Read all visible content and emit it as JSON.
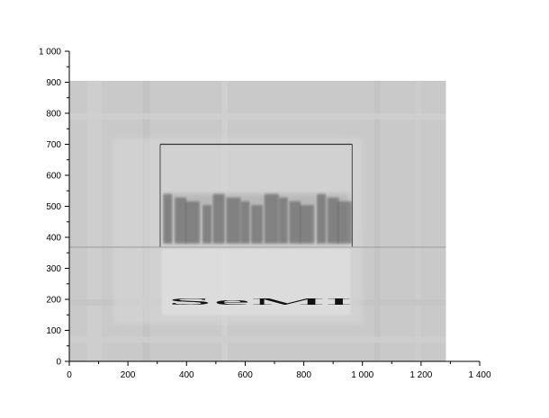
{
  "chart_data": {
    "type": "heatmap",
    "title": "",
    "xlabel": "",
    "ylabel": "",
    "xlim": [
      0,
      1400
    ],
    "ylim": [
      0,
      1000
    ],
    "x_ticks": [
      0,
      200,
      400,
      600,
      800,
      1000,
      1200,
      1400
    ],
    "y_ticks": [
      0,
      100,
      200,
      300,
      400,
      500,
      600,
      700,
      800,
      900,
      1000
    ],
    "x_tick_labels": [
      "0",
      "200",
      "400",
      "600",
      "800",
      "1 000",
      "1 200",
      "1 400"
    ],
    "y_tick_labels": [
      "0",
      "100",
      "200",
      "300",
      "400",
      "500",
      "600",
      "700",
      "800",
      "900",
      "1 000"
    ],
    "grid": false,
    "image_extent": {
      "x": [
        0,
        1285
      ],
      "y": [
        0,
        905
      ]
    },
    "background_gray": "#c9c9c9",
    "colormap": "grayscale",
    "image_text": "SeMI",
    "image_text_color": "#111111",
    "image_text_center": {
      "x": 650,
      "y": 250
    },
    "image_text_height": 200,
    "frame_box": {
      "x": [
        310,
        965
      ],
      "y": [
        370,
        700
      ]
    },
    "seam_line_y": 368,
    "bright_region": {
      "x": [
        150,
        1000
      ],
      "y": [
        120,
        720
      ]
    },
    "vertical_bands": [
      {
        "x": [
          60,
          110
        ],
        "gray": "#cfcfcf"
      },
      {
        "x": [
          250,
          275
        ],
        "gray": "#c2c2c2"
      },
      {
        "x": [
          520,
          540
        ],
        "gray": "#d0d0d0"
      },
      {
        "x": [
          1040,
          1060
        ],
        "gray": "#c3c3c3"
      },
      {
        "x": [
          1180,
          1200
        ],
        "gray": "#cdcdcd"
      }
    ],
    "horizontal_bands": [
      {
        "y": [
          780,
          800
        ],
        "gray": "#cfcfcf"
      },
      {
        "y": [
          180,
          200
        ],
        "gray": "#c4c4c4"
      },
      {
        "y": [
          60,
          80
        ],
        "gray": "#cecece"
      }
    ],
    "stripe_columns_x": [
      335,
      380,
      420,
      470,
      510,
      560,
      600,
      640,
      690,
      730,
      770,
      810,
      860,
      900,
      940
    ],
    "stripe_band_y": [
      380,
      540
    ]
  }
}
